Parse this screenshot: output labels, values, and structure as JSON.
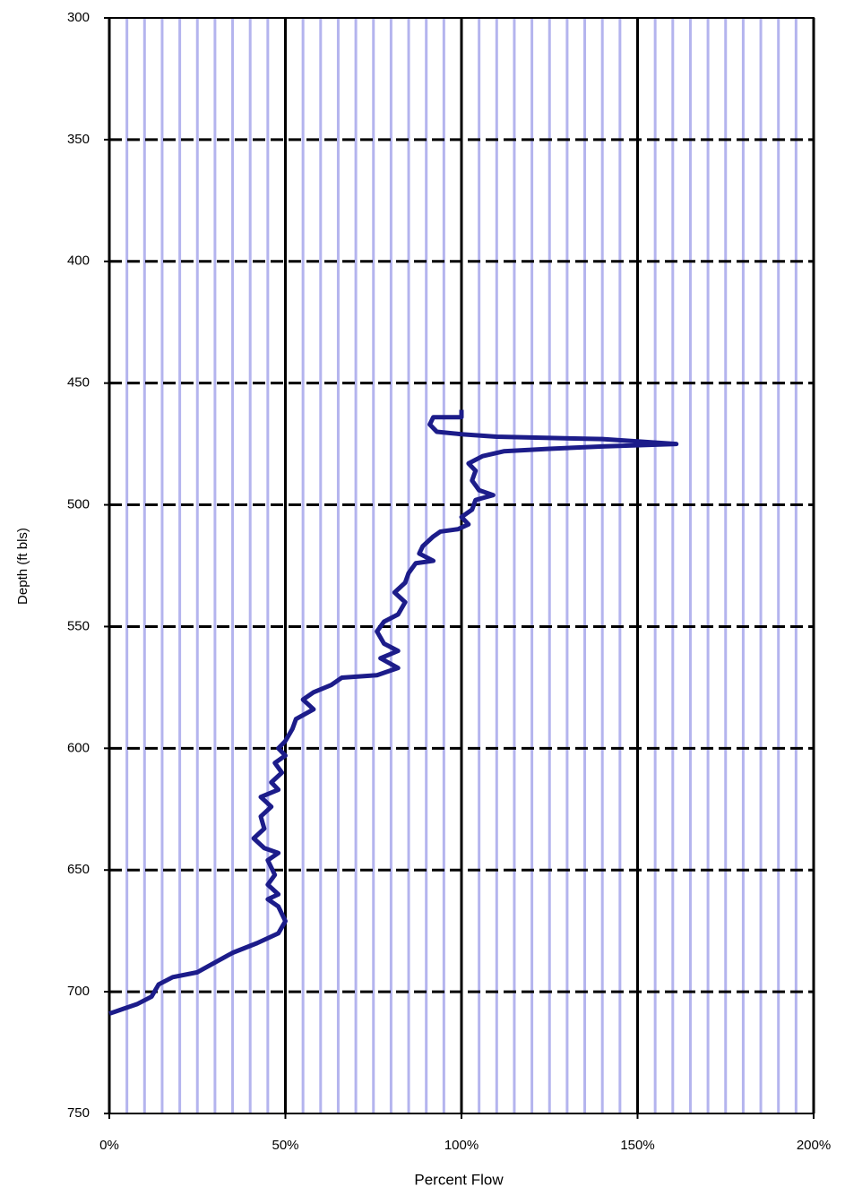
{
  "chart_data": {
    "type": "line",
    "x_label": "Percent Flow",
    "y_label": "Depth (ft bls)",
    "xlim": [
      0,
      200
    ],
    "ylim": [
      750,
      300
    ],
    "y_inverted": true,
    "xticks": [
      {
        "value": 0,
        "label": "0%"
      },
      {
        "value": 50,
        "label": "50%"
      },
      {
        "value": 100,
        "label": "100%"
      },
      {
        "value": 150,
        "label": "150%"
      },
      {
        "value": 200,
        "label": "200%"
      }
    ],
    "x_minor_ticks": [
      5,
      10,
      15,
      20,
      25,
      30,
      35,
      40,
      45,
      55,
      60,
      65,
      70,
      75,
      80,
      85,
      90,
      95,
      105,
      110,
      115,
      120,
      125,
      130,
      135,
      140,
      145,
      155,
      160,
      165,
      170,
      175,
      180,
      185,
      190,
      195
    ],
    "yticks": [
      300,
      350,
      400,
      450,
      500,
      550,
      600,
      650,
      700,
      750
    ],
    "grid": true,
    "series": [
      {
        "color": "#1c1c8a",
        "x": [
          100,
          100,
          92,
          91,
          93,
          100,
          110,
          140,
          161,
          140,
          125,
          112,
          106,
          102,
          104,
          103,
          105,
          109,
          104,
          103,
          100,
          102,
          99,
          94,
          92,
          89,
          88,
          92,
          87,
          85,
          84,
          81,
          84,
          82,
          78,
          76,
          78,
          82,
          77,
          82,
          76,
          66,
          63,
          58,
          55,
          58,
          53,
          52,
          50,
          48,
          50,
          47,
          49,
          46,
          48,
          43,
          46,
          43,
          44,
          41,
          44,
          48,
          45,
          47,
          45,
          48,
          45,
          48,
          50,
          48,
          42,
          35,
          30,
          25,
          18,
          14,
          12,
          8,
          4,
          0
        ],
        "values": [
          461,
          464,
          464,
          467,
          470,
          471,
          472,
          473,
          475,
          476,
          477,
          478,
          480,
          483,
          486,
          490,
          494,
          496,
          498,
          502,
          505,
          508,
          510,
          511,
          513,
          517,
          520,
          523,
          524,
          528,
          532,
          536,
          540,
          545,
          548,
          552,
          557,
          560,
          563,
          567,
          570,
          571,
          574,
          577,
          580,
          584,
          588,
          592,
          597,
          600,
          603,
          606,
          610,
          614,
          617,
          620,
          624,
          628,
          633,
          637,
          641,
          643,
          646,
          652,
          656,
          660,
          662,
          665,
          671,
          676,
          680,
          684,
          688,
          692,
          694,
          697,
          702,
          705,
          707,
          709
        ]
      }
    ]
  }
}
